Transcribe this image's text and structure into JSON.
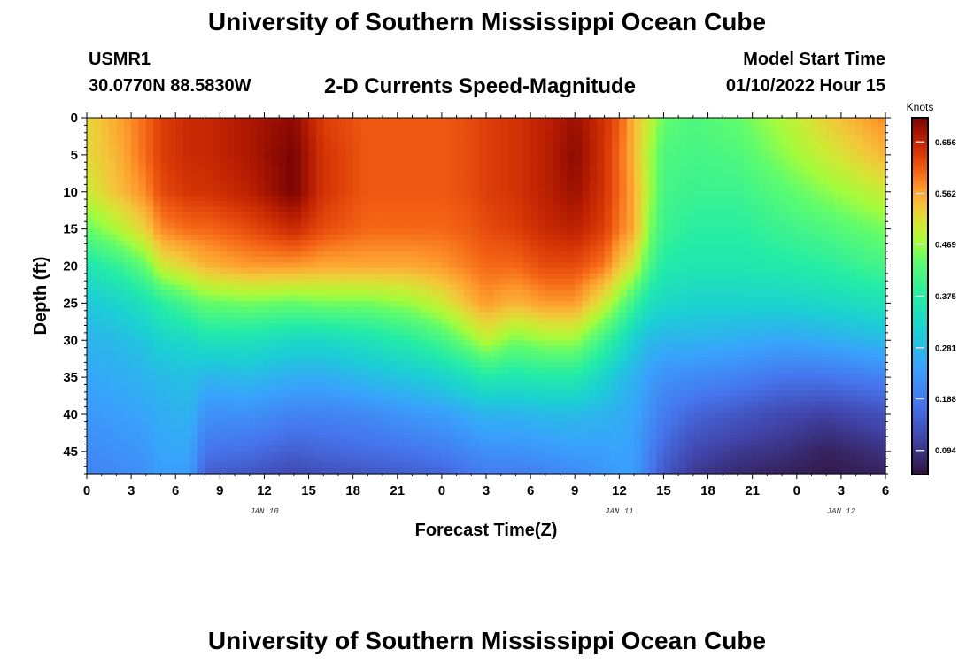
{
  "header": {
    "title": "University of Southern Mississippi Ocean Cube",
    "station_id": "USMR1",
    "station_coords": "30.0770N  88.5830W",
    "subtitle": "2-D Currents Speed-Magnitude",
    "model_start_label": "Model Start Time",
    "model_start_value": "01/10/2022 Hour 15"
  },
  "footer": {
    "title": "University of Southern Mississippi Ocean Cube"
  },
  "chart_data": {
    "type": "heatmap",
    "title": "2-D Currents Speed-Magnitude",
    "xlabel": "Forecast Time(Z)",
    "ylabel": "Depth (ft)",
    "x_hours_start": 0,
    "x_hours_end": 54,
    "x_tick_labels": [
      "0",
      "3",
      "6",
      "9",
      "12",
      "15",
      "18",
      "21",
      "0",
      "3",
      "6",
      "9",
      "12",
      "15",
      "18",
      "21",
      "0",
      "3",
      "6"
    ],
    "x_date_labels": [
      {
        "text": "JAN 10",
        "at_hour": 12
      },
      {
        "text": "JAN 11",
        "at_hour": 36
      },
      {
        "text": "JAN 12",
        "at_hour": 51
      }
    ],
    "ylim": [
      0,
      48
    ],
    "y_ticks": [
      0,
      5,
      10,
      15,
      20,
      25,
      30,
      35,
      40,
      45
    ],
    "colorbar": {
      "title": "Knots",
      "min": 0.05,
      "max": 0.7,
      "ticks": [
        0.656,
        0.562,
        0.469,
        0.375,
        0.281,
        0.188,
        0.094
      ]
    },
    "layer_depths_ft": [
      0,
      5,
      10,
      15,
      20,
      25,
      30,
      35,
      40,
      45,
      48
    ],
    "speed_by_hour": [
      {
        "hour": 0,
        "speeds": [
          0.52,
          0.52,
          0.5,
          0.44,
          0.36,
          0.3,
          0.27,
          0.25,
          0.23,
          0.21,
          0.2
        ]
      },
      {
        "hour": 2,
        "speeds": [
          0.56,
          0.55,
          0.54,
          0.48,
          0.39,
          0.32,
          0.28,
          0.26,
          0.24,
          0.22,
          0.21
        ]
      },
      {
        "hour": 4,
        "speeds": [
          0.6,
          0.6,
          0.58,
          0.53,
          0.44,
          0.35,
          0.3,
          0.27,
          0.25,
          0.23,
          0.22
        ]
      },
      {
        "hour": 5,
        "speeds": [
          0.63,
          0.63,
          0.62,
          0.58,
          0.5,
          0.38,
          0.32,
          0.28,
          0.26,
          0.25,
          0.24
        ]
      },
      {
        "hour": 7,
        "speeds": [
          0.65,
          0.65,
          0.64,
          0.6,
          0.53,
          0.42,
          0.33,
          0.29,
          0.27,
          0.25,
          0.24
        ]
      },
      {
        "hour": 8,
        "speeds": [
          0.65,
          0.65,
          0.64,
          0.6,
          0.55,
          0.44,
          0.35,
          0.27,
          0.22,
          0.18,
          0.15
        ]
      },
      {
        "hour": 11,
        "speeds": [
          0.67,
          0.67,
          0.66,
          0.62,
          0.57,
          0.45,
          0.35,
          0.28,
          0.22,
          0.17,
          0.14
        ]
      },
      {
        "hour": 14,
        "speeds": [
          0.69,
          0.7,
          0.7,
          0.65,
          0.57,
          0.44,
          0.33,
          0.26,
          0.2,
          0.15,
          0.12
        ]
      },
      {
        "hour": 16,
        "speeds": [
          0.63,
          0.64,
          0.64,
          0.62,
          0.56,
          0.45,
          0.33,
          0.26,
          0.2,
          0.16,
          0.13
        ]
      },
      {
        "hour": 19,
        "speeds": [
          0.61,
          0.61,
          0.61,
          0.6,
          0.56,
          0.45,
          0.35,
          0.28,
          0.21,
          0.17,
          0.14
        ]
      },
      {
        "hour": 22,
        "speeds": [
          0.61,
          0.61,
          0.61,
          0.6,
          0.56,
          0.47,
          0.38,
          0.3,
          0.23,
          0.18,
          0.15
        ]
      },
      {
        "hour": 24,
        "speeds": [
          0.61,
          0.61,
          0.61,
          0.6,
          0.57,
          0.5,
          0.41,
          0.32,
          0.24,
          0.19,
          0.16
        ]
      },
      {
        "hour": 26,
        "speeds": [
          0.62,
          0.62,
          0.62,
          0.61,
          0.59,
          0.55,
          0.46,
          0.35,
          0.26,
          0.21,
          0.18
        ]
      },
      {
        "hour": 27,
        "speeds": [
          0.63,
          0.63,
          0.63,
          0.62,
          0.6,
          0.57,
          0.49,
          0.37,
          0.27,
          0.22,
          0.19
        ]
      },
      {
        "hour": 29,
        "speeds": [
          0.64,
          0.64,
          0.64,
          0.63,
          0.6,
          0.55,
          0.45,
          0.36,
          0.27,
          0.22,
          0.19
        ]
      },
      {
        "hour": 31,
        "speeds": [
          0.66,
          0.66,
          0.66,
          0.65,
          0.62,
          0.57,
          0.47,
          0.37,
          0.28,
          0.23,
          0.2
        ]
      },
      {
        "hour": 33,
        "speeds": [
          0.68,
          0.69,
          0.68,
          0.66,
          0.62,
          0.57,
          0.47,
          0.37,
          0.28,
          0.24,
          0.21
        ]
      },
      {
        "hour": 35,
        "speeds": [
          0.64,
          0.64,
          0.64,
          0.63,
          0.59,
          0.5,
          0.4,
          0.32,
          0.27,
          0.24,
          0.23
        ]
      },
      {
        "hour": 36,
        "speeds": [
          0.61,
          0.6,
          0.6,
          0.59,
          0.54,
          0.45,
          0.36,
          0.29,
          0.26,
          0.25,
          0.24
        ]
      },
      {
        "hour": 37,
        "speeds": [
          0.55,
          0.55,
          0.56,
          0.56,
          0.5,
          0.4,
          0.31,
          0.27,
          0.25,
          0.24,
          0.24
        ]
      },
      {
        "hour": 38,
        "speeds": [
          0.5,
          0.48,
          0.48,
          0.46,
          0.42,
          0.35,
          0.28,
          0.24,
          0.22,
          0.2,
          0.19
        ]
      },
      {
        "hour": 39,
        "speeds": [
          0.44,
          0.42,
          0.41,
          0.4,
          0.37,
          0.33,
          0.27,
          0.22,
          0.19,
          0.16,
          0.14
        ]
      },
      {
        "hour": 41,
        "speeds": [
          0.42,
          0.41,
          0.4,
          0.38,
          0.36,
          0.32,
          0.27,
          0.21,
          0.16,
          0.12,
          0.1
        ]
      },
      {
        "hour": 44,
        "speeds": [
          0.44,
          0.42,
          0.4,
          0.38,
          0.36,
          0.32,
          0.26,
          0.2,
          0.14,
          0.1,
          0.08
        ]
      },
      {
        "hour": 47,
        "speeds": [
          0.48,
          0.46,
          0.43,
          0.4,
          0.37,
          0.32,
          0.25,
          0.18,
          0.12,
          0.09,
          0.07
        ]
      },
      {
        "hour": 50,
        "speeds": [
          0.53,
          0.5,
          0.46,
          0.42,
          0.38,
          0.33,
          0.26,
          0.18,
          0.11,
          0.07,
          0.06
        ]
      },
      {
        "hour": 54,
        "speeds": [
          0.58,
          0.55,
          0.5,
          0.45,
          0.41,
          0.35,
          0.28,
          0.2,
          0.13,
          0.09,
          0.07
        ]
      }
    ]
  }
}
